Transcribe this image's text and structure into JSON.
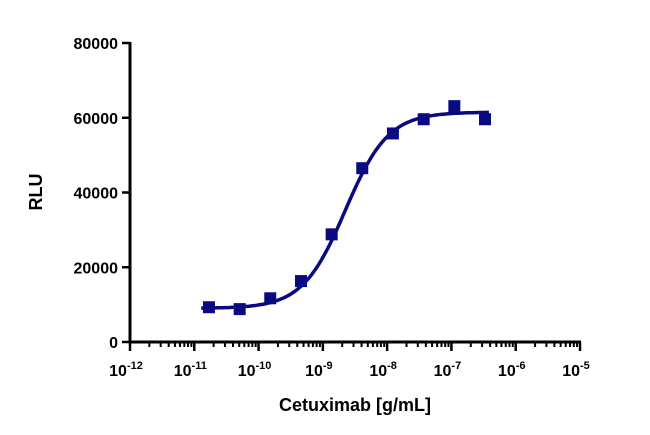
{
  "chart_data": {
    "type": "scatter",
    "xlabel": "Cetuximab [g/mL]",
    "ylabel": "RLU",
    "xscale": "log",
    "xlim": [
      1e-12,
      1e-05
    ],
    "ylim": [
      0,
      80000
    ],
    "x_ticks": [
      "-12",
      "-11",
      "-10",
      "-9",
      "-8",
      "-7",
      "-6",
      "-5"
    ],
    "x_tick_base": "10",
    "y_ticks": [
      "0",
      "20000",
      "40000",
      "60000",
      "80000"
    ],
    "grid": false,
    "legend": "none",
    "color": "#0a0a80",
    "marker": "square",
    "series": [
      {
        "x": [
          1.69e-11,
          5.08e-11,
          1.52e-10,
          4.57e-10,
          1.37e-09,
          4.1e-09,
          1.23e-08,
          3.7e-08,
          1.11e-07,
          3.33e-07
        ],
        "y": [
          9300,
          8800,
          11700,
          16300,
          28800,
          46500,
          55800,
          59600,
          63100,
          59600
        ]
      }
    ],
    "fit_curve": {
      "model": "four-parameter logistic",
      "bottom": 9000,
      "top": 61500,
      "log_ec50": -8.65,
      "hill": 1.3
    }
  }
}
